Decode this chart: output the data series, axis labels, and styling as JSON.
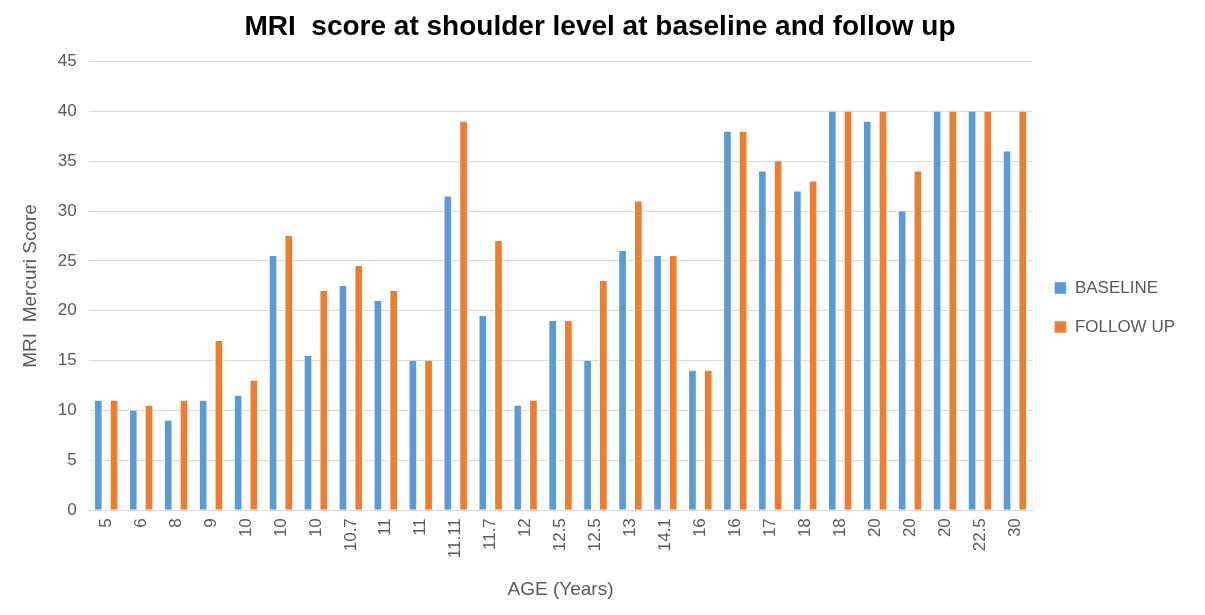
{
  "chart_data": {
    "type": "bar",
    "title": "MRI  score at shoulder level at baseline and follow up",
    "xlabel": "AGE (Years)",
    "ylabel": "MRI  Mercuri Score",
    "categories": [
      "5",
      "6",
      "8",
      "9",
      "10",
      "10",
      "10",
      "10.7",
      "11",
      "11",
      "11.11",
      "11.7",
      "12",
      "12.5",
      "12.5",
      "13",
      "14.1",
      "16",
      "16",
      "17",
      "18",
      "18",
      "20",
      "20",
      "20",
      "22.5",
      "30"
    ],
    "series": [
      {
        "name": "BASELINE",
        "color": "#5b9bd5",
        "values": [
          11,
          10,
          9,
          11,
          11.5,
          25.5,
          15.5,
          22.5,
          21,
          15,
          31.5,
          19.5,
          10.5,
          19,
          15,
          26,
          25.5,
          14,
          38,
          34,
          32,
          40,
          39,
          30,
          40,
          40,
          36
        ]
      },
      {
        "name": "FOLLOW UP",
        "color": "#ed7d31",
        "values": [
          11,
          10.5,
          11,
          17,
          13,
          27.5,
          22,
          24.5,
          22,
          15,
          39,
          27,
          11,
          19,
          23,
          31,
          25.5,
          14,
          38,
          35,
          33,
          40,
          40,
          34,
          40,
          40,
          40
        ]
      }
    ],
    "ylim": [
      0,
      45
    ],
    "yticks": [
      0,
      5,
      10,
      15,
      20,
      25,
      30,
      35,
      40,
      45
    ],
    "grid": "y",
    "legend": "right"
  }
}
